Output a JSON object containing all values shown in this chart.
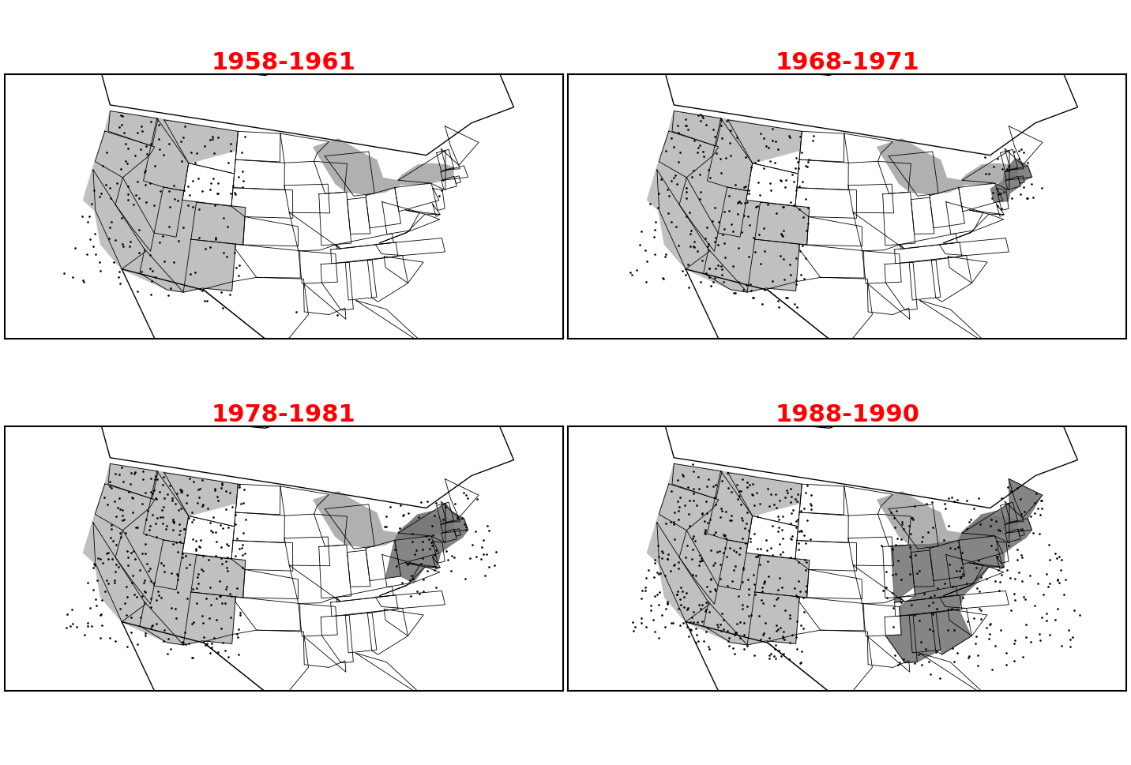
{
  "panels": [
    {
      "title": "1958-1961",
      "row": 0,
      "col": 0,
      "idx": 0
    },
    {
      "title": "1968-1971",
      "row": 0,
      "col": 1,
      "idx": 1
    },
    {
      "title": "1978-1981",
      "row": 1,
      "col": 0,
      "idx": 2
    },
    {
      "title": "1988-1990",
      "row": 1,
      "col": 1,
      "idx": 3
    }
  ],
  "title_color": "#FF0000",
  "title_fontsize": 22,
  "background_color": "#FFFFFF",
  "state_edge_color": "#000000",
  "state_edge_width": 0.6,
  "country_edge_width": 1.0,
  "west_range_color": "#C0C0C0",
  "great_lakes_stipple_color": "#B0B0B0",
  "east_spread_dark_color": "#707070",
  "dot_color": "#000000",
  "dot_size": 1.8,
  "map_xlim": [
    -128,
    -65
  ],
  "map_ylim": [
    22,
    52
  ],
  "border_lw": 1.5
}
